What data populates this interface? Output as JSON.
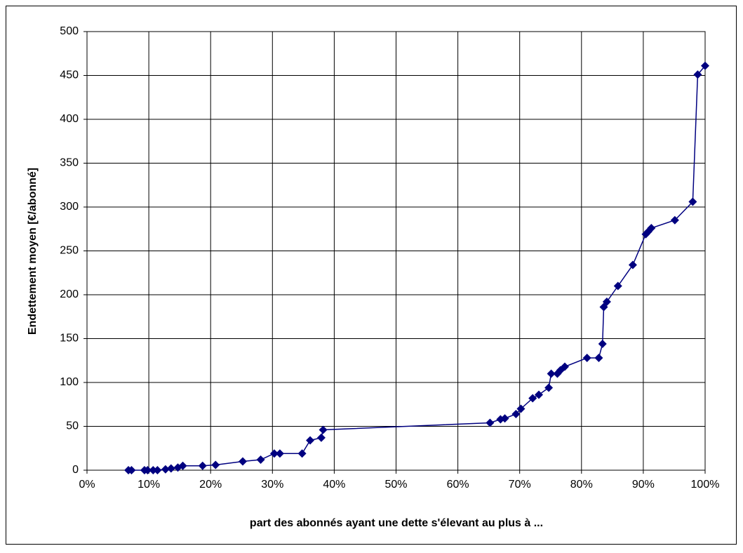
{
  "chart_data": {
    "type": "line",
    "xlabel": "part des abonnés ayant une dette s'élevant au plus à ...",
    "ylabel": "Endettement moyen [€/abonné]",
    "series": [
      {
        "name": null,
        "color": "#000080",
        "x": [
          6.7,
          7.2,
          9.3,
          9.8,
          10.7,
          11.4,
          12.7,
          13.6,
          14.7,
          15.5,
          18.7,
          20.8,
          25.2,
          28.1,
          30.3,
          31.2,
          34.8,
          36.1,
          37.9,
          38.2,
          65.2,
          66.9,
          67.6,
          69.4,
          70.2,
          72.1,
          73.1,
          74.7,
          75.1,
          76.1,
          76.6,
          77.3,
          80.9,
          82.8,
          83.4,
          83.6,
          84.1,
          85.9,
          88.3,
          90.4,
          90.8,
          91.3,
          95.1,
          98.0,
          98.8,
          100
        ],
        "values": [
          0,
          0,
          0,
          0,
          0,
          0,
          1,
          2,
          3,
          5,
          5,
          6,
          10,
          12,
          19,
          19,
          19,
          34,
          37,
          46,
          54,
          58,
          59,
          64,
          70,
          82,
          86,
          94,
          110,
          110,
          114,
          118,
          128,
          128,
          144,
          186,
          192,
          210,
          234,
          269,
          272,
          276,
          285,
          306,
          451,
          461
        ]
      }
    ],
    "xlim": [
      0,
      100
    ],
    "xticks": [
      {
        "value": 0,
        "label": "0%"
      },
      {
        "value": 10,
        "label": "10%"
      },
      {
        "value": 20,
        "label": "20%"
      },
      {
        "value": 30,
        "label": "30%"
      },
      {
        "value": 40,
        "label": "40%"
      },
      {
        "value": 50,
        "label": "50%"
      },
      {
        "value": 60,
        "label": "60%"
      },
      {
        "value": 70,
        "label": "70%"
      },
      {
        "value": 80,
        "label": "80%"
      },
      {
        "value": 90,
        "label": "90%"
      },
      {
        "value": 100,
        "label": "100%"
      }
    ],
    "ylim": [
      0,
      500
    ],
    "yticks": [
      0,
      50,
      100,
      150,
      200,
      250,
      300,
      350,
      400,
      450,
      500
    ],
    "grid": true
  }
}
